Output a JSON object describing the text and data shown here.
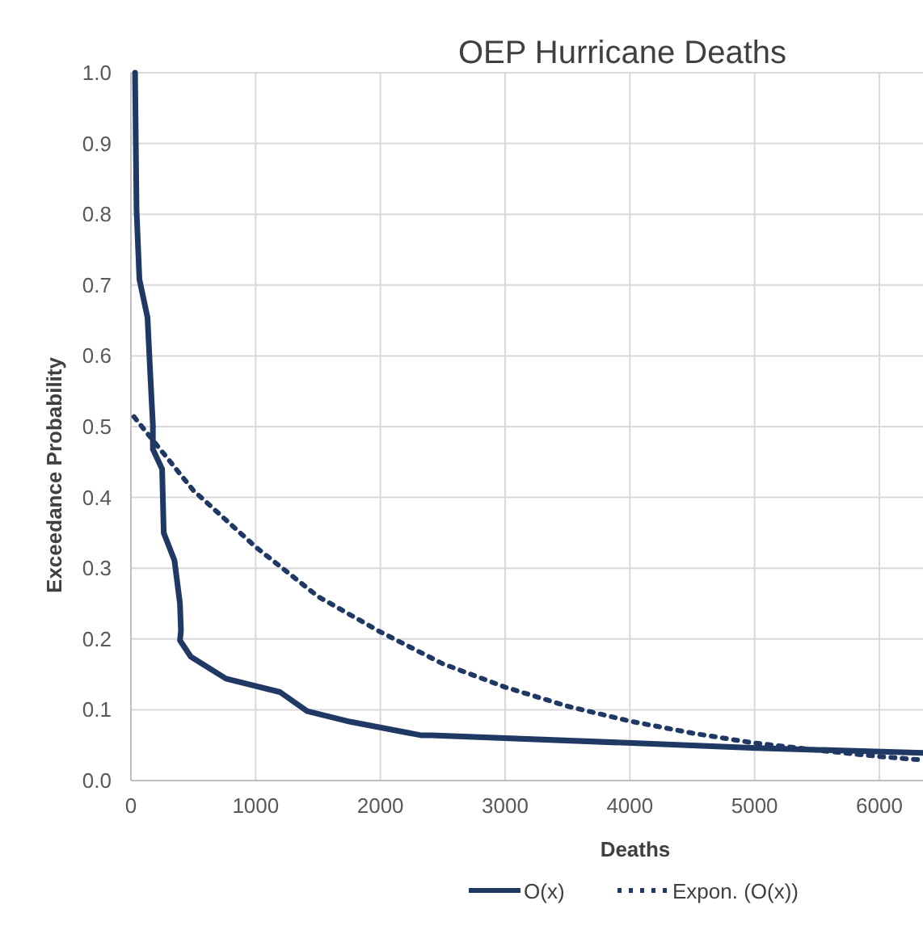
{
  "chart_data": {
    "type": "line",
    "title": "OEP Hurricane Deaths",
    "xlabel": "Deaths",
    "ylabel": "Exceedance Probability",
    "xlim": [
      0,
      6350
    ],
    "xticks": [
      0,
      1000,
      2000,
      3000,
      4000,
      5000,
      6000
    ],
    "ylim": [
      0,
      1
    ],
    "yticks": [
      {
        "value": 0,
        "label": "0.0"
      },
      0.1,
      0.2,
      0.3,
      0.4,
      0.5,
      0.6,
      0.7,
      0.8,
      0.9,
      {
        "value": 1,
        "label": "1.0"
      }
    ],
    "grid": true,
    "legend": "bottom",
    "series": [
      {
        "name": "O(x)",
        "color": "#1f3864",
        "line_style": "solid",
        "x": [
          33,
          45,
          68,
          133,
          154,
          176,
          176,
          250,
          263,
          349,
          393,
          401,
          393,
          480,
          762,
          1195,
          1413,
          1760,
          2324,
          2410,
          4017,
          5015,
          6350
        ],
        "values": [
          1.0,
          0.806,
          0.708,
          0.654,
          0.578,
          0.502,
          0.468,
          0.44,
          0.35,
          0.311,
          0.25,
          0.212,
          0.198,
          0.175,
          0.144,
          0.125,
          0.098,
          0.083,
          0.064,
          0.064,
          0.053,
          0.046,
          0.039
        ]
      },
      {
        "name": "Expon. (O(x))",
        "color": "#1f3864",
        "line_style": "dotted",
        "x": [
          24,
          500,
          1000,
          1500,
          2000,
          2500,
          3000,
          3500,
          4000,
          4500,
          5000,
          5500,
          6000,
          6350
        ],
        "values": [
          0.514,
          0.41,
          0.33,
          0.26,
          0.21,
          0.165,
          0.132,
          0.105,
          0.084,
          0.067,
          0.053,
          0.043,
          0.034,
          0.029
        ]
      }
    ]
  }
}
